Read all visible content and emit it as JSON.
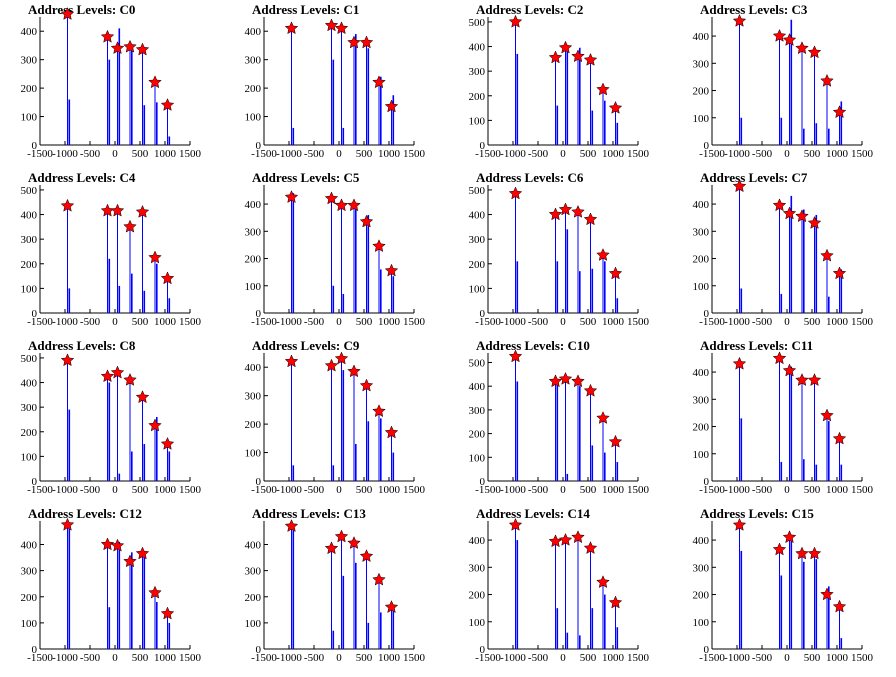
{
  "figure": {
    "panel_title_prefix": "Address Levels: "
  },
  "style": {
    "spike_color": "#0000ff",
    "peak_marker_color": "#ff0000",
    "peak_marker_stroke": "#000000",
    "axis_color": "#000000"
  },
  "chart_data": [
    {
      "type": "bar",
      "title": "Address Levels: C0",
      "xlim": [
        -1500,
        1500
      ],
      "ylim": [
        0,
        450
      ],
      "yticks": [
        0,
        100,
        200,
        300,
        400
      ],
      "x": [
        -950,
        -150,
        50,
        300,
        550,
        800,
        1050
      ],
      "values": [
        460,
        380,
        340,
        345,
        335,
        220,
        140
      ],
      "secondary": [
        160,
        300,
        410,
        350,
        140,
        150,
        30
      ]
    },
    {
      "type": "bar",
      "title": "Address Levels: C1",
      "xlim": [
        -1500,
        1500
      ],
      "ylim": [
        0,
        450
      ],
      "yticks": [
        0,
        100,
        200,
        300,
        400
      ],
      "x": [
        -950,
        -150,
        50,
        300,
        550,
        800,
        1050
      ],
      "values": [
        410,
        420,
        410,
        360,
        360,
        220,
        135
      ],
      "secondary": [
        60,
        300,
        60,
        390,
        340,
        240,
        175
      ]
    },
    {
      "type": "bar",
      "title": "Address Levels: C2",
      "xlim": [
        -1500,
        1500
      ],
      "ylim": [
        0,
        520
      ],
      "yticks": [
        0,
        100,
        200,
        300,
        400,
        500
      ],
      "x": [
        -950,
        -150,
        50,
        300,
        550,
        800,
        1050
      ],
      "values": [
        500,
        355,
        395,
        360,
        345,
        225,
        150
      ],
      "secondary": [
        370,
        160,
        400,
        395,
        140,
        180,
        90
      ]
    },
    {
      "type": "bar",
      "title": "Address Levels: C3",
      "xlim": [
        -1500,
        1500
      ],
      "ylim": [
        0,
        470
      ],
      "yticks": [
        0,
        100,
        200,
        300,
        400
      ],
      "x": [
        -950,
        -150,
        50,
        300,
        550,
        800,
        1050
      ],
      "values": [
        455,
        400,
        385,
        355,
        340,
        235,
        120
      ],
      "secondary": [
        100,
        100,
        460,
        60,
        80,
        60,
        160
      ]
    },
    {
      "type": "bar",
      "title": "Address Levels: C4",
      "xlim": [
        -1500,
        1500
      ],
      "ylim": [
        0,
        520
      ],
      "yticks": [
        0,
        100,
        200,
        300,
        400,
        500
      ],
      "x": [
        -950,
        -150,
        50,
        300,
        550,
        800,
        1050
      ],
      "values": [
        435,
        415,
        415,
        350,
        410,
        225,
        140
      ],
      "secondary": [
        100,
        220,
        110,
        160,
        90,
        200,
        60
      ]
    },
    {
      "type": "bar",
      "title": "Address Levels: C5",
      "xlim": [
        -1500,
        1500
      ],
      "ylim": [
        0,
        470
      ],
      "yticks": [
        0,
        100,
        200,
        300,
        400
      ],
      "x": [
        -950,
        -150,
        50,
        300,
        550,
        800,
        1050
      ],
      "values": [
        425,
        420,
        395,
        395,
        335,
        245,
        155
      ],
      "secondary": [
        440,
        100,
        70,
        400,
        360,
        160,
        135
      ]
    },
    {
      "type": "bar",
      "title": "Address Levels: C6",
      "xlim": [
        -1500,
        1500
      ],
      "ylim": [
        0,
        520
      ],
      "yticks": [
        0,
        100,
        200,
        300,
        400,
        500
      ],
      "x": [
        -950,
        -150,
        50,
        300,
        550,
        800,
        1050
      ],
      "values": [
        485,
        400,
        420,
        410,
        380,
        235,
        160
      ],
      "secondary": [
        210,
        210,
        340,
        170,
        180,
        210,
        60
      ]
    },
    {
      "type": "bar",
      "title": "Address Levels: C7",
      "xlim": [
        -1500,
        1500
      ],
      "ylim": [
        0,
        470
      ],
      "yticks": [
        0,
        100,
        200,
        300,
        400
      ],
      "x": [
        -950,
        -150,
        50,
        300,
        550,
        800,
        1050
      ],
      "values": [
        465,
        395,
        365,
        355,
        330,
        210,
        145
      ],
      "secondary": [
        90,
        70,
        430,
        380,
        360,
        60,
        160
      ]
    },
    {
      "type": "bar",
      "title": "Address Levels: C8",
      "xlim": [
        -1500,
        1500
      ],
      "ylim": [
        0,
        520
      ],
      "yticks": [
        0,
        100,
        200,
        300,
        400,
        500
      ],
      "x": [
        -950,
        -150,
        50,
        300,
        550,
        800,
        1050
      ],
      "values": [
        490,
        425,
        440,
        410,
        340,
        225,
        150
      ],
      "secondary": [
        290,
        400,
        30,
        120,
        150,
        260,
        120
      ]
    },
    {
      "type": "bar",
      "title": "Address Levels: C9",
      "xlim": [
        -1500,
        1500
      ],
      "ylim": [
        0,
        450
      ],
      "yticks": [
        0,
        100,
        200,
        300,
        400
      ],
      "x": [
        -950,
        -150,
        50,
        300,
        550,
        800,
        1050
      ],
      "values": [
        420,
        405,
        430,
        385,
        335,
        245,
        170
      ],
      "secondary": [
        55,
        55,
        390,
        130,
        210,
        220,
        100
      ]
    },
    {
      "type": "bar",
      "title": "Address Levels: C10",
      "xlim": [
        -1500,
        1500
      ],
      "ylim": [
        0,
        540
      ],
      "yticks": [
        0,
        100,
        200,
        300,
        400,
        500
      ],
      "x": [
        -950,
        -150,
        50,
        300,
        550,
        800,
        1050
      ],
      "values": [
        525,
        420,
        430,
        420,
        380,
        265,
        165
      ],
      "secondary": [
        420,
        420,
        30,
        400,
        150,
        120,
        80
      ]
    },
    {
      "type": "bar",
      "title": "Address Levels: C11",
      "xlim": [
        -1500,
        1500
      ],
      "ylim": [
        0,
        470
      ],
      "yticks": [
        0,
        100,
        200,
        300,
        400
      ],
      "x": [
        -950,
        -150,
        50,
        300,
        550,
        800,
        1050
      ],
      "values": [
        430,
        450,
        405,
        370,
        370,
        240,
        155
      ],
      "secondary": [
        230,
        70,
        420,
        80,
        60,
        220,
        60
      ]
    },
    {
      "type": "bar",
      "title": "Address Levels: C12",
      "xlim": [
        -1500,
        1500
      ],
      "ylim": [
        0,
        490
      ],
      "yticks": [
        0,
        100,
        200,
        300,
        400
      ],
      "x": [
        -950,
        -150,
        50,
        300,
        550,
        800,
        1050
      ],
      "values": [
        475,
        400,
        395,
        335,
        365,
        215,
        135
      ],
      "secondary": [
        470,
        160,
        410,
        370,
        350,
        180,
        100
      ]
    },
    {
      "type": "bar",
      "title": "Address Levels: C13",
      "xlim": [
        -1500,
        1500
      ],
      "ylim": [
        0,
        490
      ],
      "yticks": [
        0,
        100,
        200,
        300,
        400
      ],
      "x": [
        -950,
        -150,
        50,
        300,
        550,
        800,
        1050
      ],
      "values": [
        470,
        385,
        430,
        405,
        355,
        265,
        160
      ],
      "secondary": [
        470,
        70,
        280,
        330,
        100,
        140,
        160
      ]
    },
    {
      "type": "bar",
      "title": "Address Levels: C14",
      "xlim": [
        -1500,
        1500
      ],
      "ylim": [
        0,
        470
      ],
      "yticks": [
        0,
        100,
        200,
        300,
        400
      ],
      "x": [
        -950,
        -150,
        50,
        300,
        550,
        800,
        1050
      ],
      "values": [
        455,
        395,
        400,
        410,
        370,
        245,
        170
      ],
      "secondary": [
        400,
        150,
        60,
        50,
        150,
        200,
        80
      ]
    },
    {
      "type": "bar",
      "title": "Address Levels: C15",
      "xlim": [
        -1500,
        1500
      ],
      "ylim": [
        0,
        470
      ],
      "yticks": [
        0,
        100,
        200,
        300,
        400
      ],
      "x": [
        -950,
        -150,
        50,
        300,
        550,
        800,
        1050
      ],
      "values": [
        455,
        365,
        410,
        350,
        350,
        200,
        155
      ],
      "secondary": [
        360,
        270,
        400,
        320,
        330,
        230,
        40
      ]
    }
  ]
}
